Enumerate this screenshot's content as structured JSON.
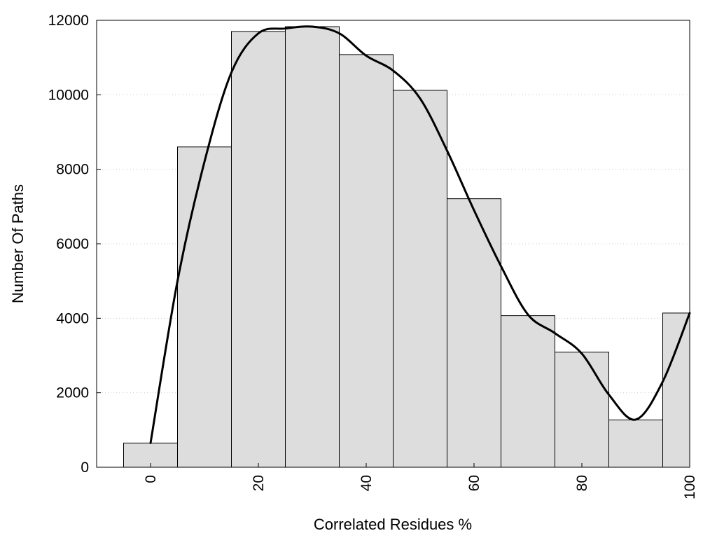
{
  "chart_data": {
    "type": "bar",
    "subtype": "histogram",
    "title": "",
    "xlabel": "Correlated Residues %",
    "ylabel": "Number Of Paths",
    "bin_width": 10,
    "bin_centers": [
      0,
      10,
      20,
      30,
      40,
      50,
      60,
      70,
      80,
      90,
      100
    ],
    "values": [
      650,
      8600,
      11700,
      11830,
      11080,
      10120,
      7210,
      4070,
      3090,
      1270,
      4140
    ],
    "xlim": [
      -10,
      100
    ],
    "ylim": [
      0,
      12000
    ],
    "x_ticks": [
      0,
      20,
      40,
      60,
      80,
      100
    ],
    "x_tick_labels": [
      "0",
      "20",
      "40",
      "60",
      "80",
      "100"
    ],
    "x_tick_label_rotation": "vertical",
    "y_ticks": [
      0,
      2000,
      4000,
      6000,
      8000,
      10000,
      12000
    ],
    "y_tick_labels": [
      "0",
      "2000",
      "4000",
      "6000",
      "8000",
      "10000",
      "12000"
    ],
    "grid": "horizontal dotted",
    "legend": "none",
    "density_curve": {
      "type": "smooth line",
      "x": [
        0,
        5,
        10,
        15,
        20,
        25,
        30,
        35,
        40,
        45,
        50,
        55,
        60,
        65,
        70,
        75,
        80,
        85,
        90,
        95,
        100
      ],
      "y": [
        650,
        5000,
        8200,
        10600,
        11650,
        11780,
        11830,
        11650,
        11050,
        10650,
        9900,
        8500,
        6900,
        5400,
        4100,
        3600,
        3050,
        1950,
        1280,
        2300,
        4140
      ]
    },
    "colors": {
      "bar_fill": "#dddddd",
      "bar_edge": "#000000",
      "curve": "#000000",
      "grid": "#cccccc"
    }
  }
}
